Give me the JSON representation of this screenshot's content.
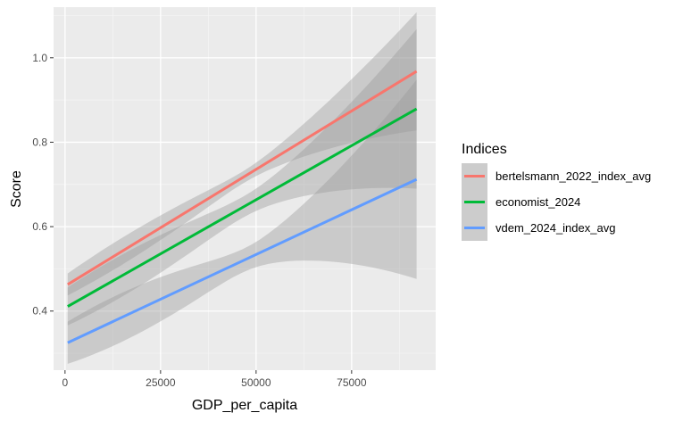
{
  "chart_data": {
    "type": "line",
    "title": "",
    "xlabel": "GDP_per_capita",
    "ylabel": "Score",
    "xlim": [
      -3000,
      97000
    ],
    "ylim": [
      0.26,
      1.12
    ],
    "x_ticks": [
      0,
      25000,
      50000,
      75000
    ],
    "x_tick_labels": [
      "0",
      "25000",
      "50000",
      "75000"
    ],
    "y_ticks": [
      0.4,
      0.6,
      0.8,
      1.0
    ],
    "y_tick_labels": [
      "0.4",
      "0.6",
      "0.8",
      "1.0"
    ],
    "grid": true,
    "legend": {
      "title": "Indices",
      "position": "right"
    },
    "x_range": [
      700,
      92000
    ],
    "series": [
      {
        "name": "bertelsmann_2022_index_avg",
        "color": "#F8766D",
        "x": [
          700,
          92000
        ],
        "y": [
          0.463,
          0.968
        ],
        "ci_lower": [
          0.437,
          0.828
        ],
        "ci_upper": [
          0.489,
          1.108
        ]
      },
      {
        "name": "economist_2024",
        "color": "#00BA38",
        "x": [
          700,
          92000
        ],
        "y": [
          0.411,
          0.879
        ],
        "ci_lower": [
          0.366,
          0.69
        ],
        "ci_upper": [
          0.456,
          1.068
        ]
      },
      {
        "name": "vdem_2024_index_avg",
        "color": "#619CFF",
        "x": [
          700,
          92000
        ],
        "y": [
          0.325,
          0.712
        ],
        "ci_lower": [
          0.275,
          0.476
        ],
        "ci_upper": [
          0.375,
          0.948
        ]
      }
    ]
  }
}
